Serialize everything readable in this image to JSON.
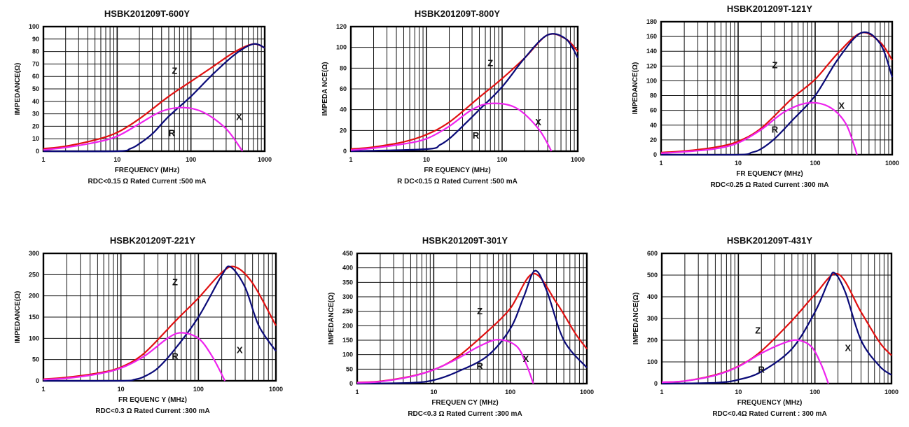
{
  "colors": {
    "Z": "#e01010",
    "R": "#0a0a78",
    "X": "#ee22ee",
    "grid": "#111111"
  },
  "chart_data": [
    {
      "type": "line",
      "title": "HSBK201209T-600Y",
      "xlabel": "FREQUENCY (MHz)",
      "ylabel": "IMPEDANCE(Ω)",
      "footnote": "RDC<0.15 Ω Rated Current :500 mA",
      "xscale": "log",
      "xlim": [
        1,
        1000
      ],
      "ylim": [
        0,
        100
      ],
      "yticks": [
        "0",
        "10",
        "20",
        "30",
        "40",
        "50",
        "60",
        "70",
        "80",
        "90",
        "100"
      ],
      "xticks": [
        "1",
        "10",
        "100",
        "1000"
      ],
      "grid": true,
      "series": [
        {
          "name": "Z",
          "x": [
            1,
            2,
            5,
            10,
            20,
            50,
            100,
            200,
            400,
            700,
            1000
          ],
          "y": [
            2,
            4,
            9,
            15,
            26,
            44,
            56,
            68,
            80,
            86,
            83
          ]
        },
        {
          "name": "R",
          "x": [
            1,
            10,
            15,
            20,
            30,
            50,
            100,
            200,
            400,
            700,
            1000
          ],
          "y": [
            0,
            0,
            2,
            6,
            14,
            28,
            44,
            62,
            78,
            86,
            83
          ]
        },
        {
          "name": "X",
          "x": [
            1,
            2,
            5,
            10,
            20,
            40,
            80,
            150,
            300,
            500
          ],
          "y": [
            1,
            3,
            7,
            12,
            22,
            32,
            35,
            31,
            18,
            0
          ]
        }
      ],
      "series_labels": [
        {
          "text": "Z",
          "x": 60,
          "y": 62
        },
        {
          "text": "R",
          "x": 55,
          "y": 12
        },
        {
          "text": "X",
          "x": 450,
          "y": 25
        }
      ]
    },
    {
      "type": "line",
      "title": "HSBK201209T-800Y",
      "xlabel": "FR EQUENCY (MHz)",
      "ylabel": "IMPEDA NCE(Ω)",
      "footnote": "R DC<0.15 Ω Rated Current :500 mA",
      "xscale": "log",
      "xlim": [
        1,
        1000
      ],
      "ylim": [
        0,
        120
      ],
      "yticks": [
        "0",
        "20",
        "40",
        "60",
        "80",
        "100",
        "120"
      ],
      "xticks": [
        "1",
        "10",
        "100",
        "1000"
      ],
      "grid": true,
      "series": [
        {
          "name": "Z",
          "x": [
            1,
            2,
            5,
            10,
            20,
            50,
            100,
            200,
            400,
            700,
            1000
          ],
          "y": [
            2,
            4,
            9,
            16,
            28,
            52,
            70,
            90,
            112,
            108,
            96
          ]
        },
        {
          "name": "R",
          "x": [
            1,
            10,
            15,
            20,
            30,
            50,
            100,
            200,
            400,
            700,
            1000
          ],
          "y": [
            0,
            2,
            6,
            12,
            24,
            40,
            62,
            90,
            112,
            108,
            90
          ]
        },
        {
          "name": "X",
          "x": [
            1,
            2,
            5,
            10,
            20,
            40,
            70,
            150,
            300,
            450
          ],
          "y": [
            1,
            3,
            7,
            12,
            24,
            40,
            46,
            42,
            22,
            0
          ]
        }
      ],
      "series_labels": [
        {
          "text": "Z",
          "x": 70,
          "y": 82
        },
        {
          "text": "R",
          "x": 45,
          "y": 12
        },
        {
          "text": "X",
          "x": 300,
          "y": 25
        }
      ]
    },
    {
      "type": "line",
      "title": "HSBK201209T-121Y",
      "xlabel": "FR EQUENCY (MHz)",
      "ylabel": "IMPEDANCE(Ω)",
      "footnote": "RDC<0.25 Ω Rated Current :300 mA",
      "xscale": "log",
      "xlim": [
        1,
        1000
      ],
      "ylim": [
        0,
        180
      ],
      "yticks": [
        "0",
        "20",
        "40",
        "60",
        "80",
        "100",
        "120",
        "140",
        "160",
        "180"
      ],
      "xticks": [
        "1",
        "10",
        "100",
        "1000"
      ],
      "grid": true,
      "series": [
        {
          "name": "Z",
          "x": [
            1,
            2,
            5,
            10,
            20,
            50,
            100,
            200,
            400,
            700,
            1000
          ],
          "y": [
            3,
            5,
            10,
            18,
            36,
            76,
            102,
            138,
            165,
            152,
            128
          ]
        },
        {
          "name": "R",
          "x": [
            1,
            10,
            15,
            20,
            30,
            50,
            100,
            200,
            400,
            700,
            1000
          ],
          "y": [
            0,
            0,
            3,
            8,
            22,
            46,
            80,
            130,
            165,
            150,
            105
          ]
        },
        {
          "name": "X",
          "x": [
            1,
            2,
            5,
            10,
            20,
            40,
            80,
            150,
            250,
            350
          ],
          "y": [
            2,
            4,
            8,
            16,
            34,
            58,
            70,
            65,
            42,
            0
          ]
        }
      ],
      "series_labels": [
        {
          "text": "Z",
          "x": 30,
          "y": 117
        },
        {
          "text": "R",
          "x": 30,
          "y": 30
        },
        {
          "text": "X",
          "x": 220,
          "y": 62
        }
      ]
    },
    {
      "type": "line",
      "title": "HSBK201209T-221Y",
      "xlabel": "FR EQUENC Y (MHz)",
      "ylabel": "IMPEDANCE(Ω)",
      "footnote": "RDC<0.3 Ω Rated Current :300 mA",
      "xscale": "log",
      "xlim": [
        1,
        1000
      ],
      "ylim": [
        0,
        300
      ],
      "yticks": [
        "0",
        "50",
        "100",
        "150",
        "200",
        "250",
        "300"
      ],
      "xticks": [
        "1",
        "10",
        "100",
        "1000"
      ],
      "grid": true,
      "series": [
        {
          "name": "Z",
          "x": [
            1,
            2,
            5,
            10,
            20,
            50,
            100,
            200,
            300,
            500,
            1000
          ],
          "y": [
            4,
            8,
            18,
            32,
            65,
            140,
            195,
            255,
            268,
            230,
            130
          ]
        },
        {
          "name": "R",
          "x": [
            1,
            10,
            15,
            20,
            30,
            50,
            100,
            200,
            260,
            400,
            600,
            1000
          ],
          "y": [
            0,
            0,
            3,
            10,
            30,
            75,
            150,
            248,
            268,
            220,
            130,
            70
          ]
        },
        {
          "name": "X",
          "x": [
            1,
            2,
            5,
            10,
            20,
            40,
            60,
            100,
            150,
            220
          ],
          "y": [
            3,
            6,
            16,
            30,
            58,
            100,
            113,
            100,
            58,
            0
          ]
        }
      ],
      "series_labels": [
        {
          "text": "Z",
          "x": 50,
          "y": 225
        },
        {
          "text": "R",
          "x": 50,
          "y": 50
        },
        {
          "text": "X",
          "x": 340,
          "y": 65
        }
      ]
    },
    {
      "type": "line",
      "title": "HSBK201209T-301Y",
      "xlabel": "FREQUEN CY (MHz)",
      "ylabel": "IMPEDANCE(Ω)",
      "footnote": "RDC<0.3 Ω Rated Current :300 mA",
      "xscale": "log",
      "xlim": [
        1,
        1000
      ],
      "ylim": [
        0,
        450
      ],
      "yticks": [
        "0",
        "50",
        "100",
        "150",
        "200",
        "250",
        "300",
        "350",
        "400",
        "450"
      ],
      "xticks": [
        "1",
        "10",
        "100",
        "1000"
      ],
      "grid": true,
      "series": [
        {
          "name": "Z",
          "x": [
            1,
            2,
            5,
            10,
            20,
            50,
            100,
            200,
            400,
            700,
            1000
          ],
          "y": [
            4,
            8,
            25,
            48,
            90,
            180,
            260,
            380,
            280,
            175,
            120
          ]
        },
        {
          "name": "R",
          "x": [
            1,
            5,
            10,
            20,
            50,
            100,
            150,
            210,
            300,
            500,
            1000
          ],
          "y": [
            0,
            3,
            12,
            40,
            95,
            190,
            300,
            390,
            320,
            150,
            55
          ]
        },
        {
          "name": "X",
          "x": [
            1,
            2,
            5,
            10,
            20,
            40,
            70,
            120,
            160,
            200
          ],
          "y": [
            3,
            7,
            24,
            48,
            85,
            130,
            152,
            130,
            70,
            0
          ]
        }
      ],
      "series_labels": [
        {
          "text": "Z",
          "x": 40,
          "y": 240
        },
        {
          "text": "R",
          "x": 40,
          "y": 50
        },
        {
          "text": "X",
          "x": 160,
          "y": 75
        }
      ]
    },
    {
      "type": "line",
      "title": "HSBK201209T-431Y",
      "xlabel": "FREQUENCY (MHz)",
      "ylabel": "IMPEDANCE(Ω)",
      "footnote": "RDC<0.4Ω Rated Current : 300 mA",
      "xscale": "log",
      "xlim": [
        1,
        1000
      ],
      "ylim": [
        0,
        600
      ],
      "yticks": [
        "0",
        "100",
        "200",
        "300",
        "400",
        "500",
        "600"
      ],
      "xticks": [
        "1",
        "10",
        "100",
        "1000"
      ],
      "grid": true,
      "series": [
        {
          "name": "Z",
          "x": [
            1,
            2,
            5,
            10,
            20,
            50,
            100,
            200,
            400,
            700,
            1000
          ],
          "y": [
            6,
            12,
            40,
            80,
            150,
            290,
            410,
            505,
            330,
            190,
            130
          ]
        },
        {
          "name": "R",
          "x": [
            1,
            5,
            10,
            20,
            50,
            100,
            150,
            180,
            250,
            400,
            700,
            1000
          ],
          "y": [
            0,
            4,
            18,
            55,
            160,
            330,
            470,
            510,
            420,
            200,
            80,
            40
          ]
        },
        {
          "name": "X",
          "x": [
            1,
            2,
            5,
            10,
            20,
            40,
            60,
            90,
            120,
            150
          ],
          "y": [
            6,
            12,
            38,
            78,
            140,
            188,
            200,
            170,
            90,
            0
          ]
        }
      ],
      "series_labels": [
        {
          "text": "Z",
          "x": 18,
          "y": 230
        },
        {
          "text": "R",
          "x": 20,
          "y": 50
        },
        {
          "text": "X",
          "x": 270,
          "y": 150
        }
      ]
    }
  ]
}
